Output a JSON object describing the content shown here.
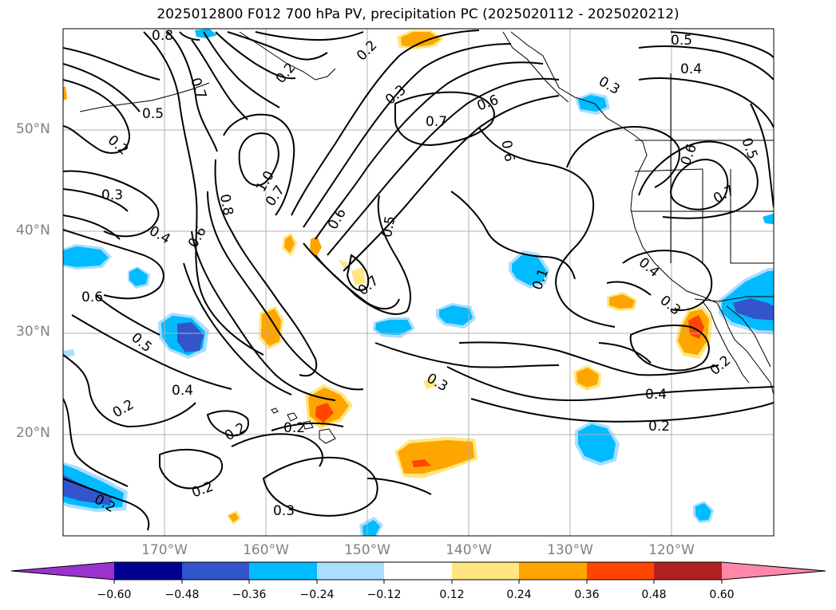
{
  "title": "2025012800 F012 700 hPa PV, precipitation PC (2025020112 - 2025020212)",
  "map": {
    "lat_ticks": [
      "50°N",
      "40°N",
      "30°N",
      "20°N"
    ],
    "lon_ticks": [
      "170°W",
      "160°W",
      "150°W",
      "140°W",
      "130°W",
      "120°W"
    ]
  },
  "contour_labels": [
    {
      "text": "0.8"
    },
    {
      "text": "0.2"
    },
    {
      "text": "0.2"
    },
    {
      "text": "0.5"
    },
    {
      "text": "0.4"
    },
    {
      "text": "0.7"
    },
    {
      "text": "0.5"
    },
    {
      "text": "0.2"
    },
    {
      "text": "0.3"
    },
    {
      "text": "0.7"
    },
    {
      "text": "0.6"
    },
    {
      "text": "0.3"
    },
    {
      "text": "0.3"
    },
    {
      "text": "1.0"
    },
    {
      "text": "0.7"
    },
    {
      "text": "0.8"
    },
    {
      "text": "0.6"
    },
    {
      "text": "0.6"
    },
    {
      "text": "0.4"
    },
    {
      "text": "0.5"
    },
    {
      "text": "0.6"
    },
    {
      "text": "0.7"
    },
    {
      "text": "0.6"
    },
    {
      "text": "0.7"
    },
    {
      "text": "0.1"
    },
    {
      "text": "0.4"
    },
    {
      "text": "0.3"
    },
    {
      "text": "0.5"
    },
    {
      "text": "0.6"
    },
    {
      "text": "0.5"
    },
    {
      "text": "0.4"
    },
    {
      "text": "0.3"
    },
    {
      "text": "0.2"
    },
    {
      "text": "0.2"
    },
    {
      "text": "0.2"
    },
    {
      "text": "0.4"
    },
    {
      "text": "0.2"
    },
    {
      "text": "0.2"
    },
    {
      "text": "0.2"
    },
    {
      "text": "0.3"
    },
    {
      "text": "0.2"
    }
  ],
  "colorbar": {
    "colors": [
      "#9933cc",
      "#000090",
      "#3355cc",
      "#00bbff",
      "#aaddff",
      "#ffffff",
      "#ffe680",
      "#ffa500",
      "#ff4500",
      "#b22222",
      "#ff88aa"
    ],
    "tick_labels": [
      "−0.60",
      "−0.48",
      "−0.36",
      "−0.24",
      "−0.12",
      "0.12",
      "0.24",
      "0.36",
      "0.48",
      "0.60"
    ]
  }
}
